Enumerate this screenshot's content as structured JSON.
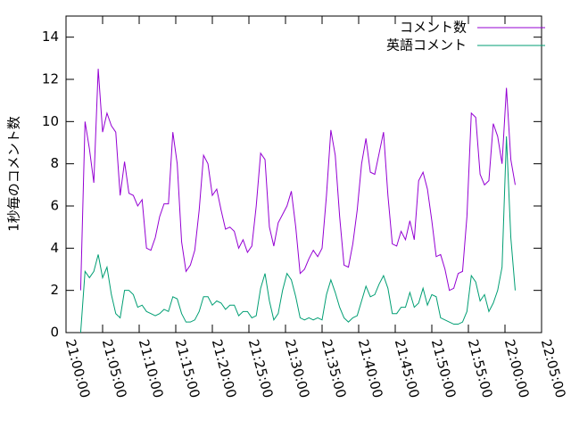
{
  "chart_data": {
    "type": "line",
    "y_label": "1秒毎のコメント数",
    "legend": "top-right",
    "x": [
      "21:02:00",
      "21:02:36",
      "21:03:12",
      "21:03:48",
      "21:04:24",
      "21:05:00",
      "21:05:36",
      "21:06:12",
      "21:06:48",
      "21:07:24",
      "21:08:00",
      "21:08:36",
      "21:09:12",
      "21:09:48",
      "21:10:24",
      "21:11:00",
      "21:11:36",
      "21:12:12",
      "21:12:48",
      "21:13:24",
      "21:14:00",
      "21:14:36",
      "21:15:12",
      "21:15:48",
      "21:16:24",
      "21:17:00",
      "21:17:36",
      "21:18:12",
      "21:18:48",
      "21:19:24",
      "21:20:00",
      "21:20:36",
      "21:21:12",
      "21:21:48",
      "21:22:24",
      "21:23:00",
      "21:23:36",
      "21:24:12",
      "21:24:48",
      "21:25:24",
      "21:26:00",
      "21:26:36",
      "21:27:12",
      "21:27:48",
      "21:28:24",
      "21:29:00",
      "21:29:36",
      "21:30:12",
      "21:30:48",
      "21:31:24",
      "21:32:00",
      "21:32:36",
      "21:33:12",
      "21:33:48",
      "21:34:24",
      "21:35:00",
      "21:35:36",
      "21:36:12",
      "21:36:48",
      "21:37:24",
      "21:38:00",
      "21:38:36",
      "21:39:12",
      "21:39:48",
      "21:40:24",
      "21:41:00",
      "21:41:36",
      "21:42:12",
      "21:42:48",
      "21:43:24",
      "21:44:00",
      "21:44:36",
      "21:45:12",
      "21:45:48",
      "21:46:24",
      "21:47:00",
      "21:47:36",
      "21:48:12",
      "21:48:48",
      "21:49:24",
      "21:50:00",
      "21:50:36",
      "21:51:12",
      "21:51:48",
      "21:52:24",
      "21:53:00",
      "21:53:36",
      "21:54:12",
      "21:54:48",
      "21:55:24",
      "21:56:00",
      "21:56:36",
      "21:57:12",
      "21:57:48",
      "21:58:24",
      "21:59:00",
      "21:59:36",
      "22:00:12",
      "22:00:48",
      "22:01:24"
    ],
    "series": [
      {
        "name": "コメント数",
        "color": "#9400d3",
        "values": [
          2.0,
          10.0,
          8.7,
          7.1,
          12.5,
          9.5,
          10.4,
          9.8,
          9.5,
          6.5,
          8.1,
          6.6,
          6.5,
          6.0,
          6.3,
          4.0,
          3.9,
          4.5,
          5.5,
          6.1,
          6.1,
          9.5,
          8.0,
          4.3,
          2.9,
          3.2,
          3.9,
          5.8,
          8.4,
          8.0,
          6.5,
          6.8,
          5.8,
          4.9,
          5.0,
          4.8,
          4.0,
          4.4,
          3.8,
          4.1,
          6.0,
          8.5,
          8.2,
          5.0,
          4.1,
          5.2,
          5.6,
          6.0,
          6.7,
          5.0,
          2.8,
          3.0,
          3.5,
          3.9,
          3.6,
          4.0,
          6.5,
          9.6,
          8.4,
          5.5,
          3.2,
          3.1,
          4.2,
          5.8,
          8.0,
          9.2,
          7.6,
          7.5,
          8.5,
          9.5,
          6.5,
          4.2,
          4.1,
          4.8,
          4.4,
          5.3,
          4.4,
          7.2,
          7.6,
          6.8,
          5.3,
          3.6,
          3.7,
          3.0,
          2.0,
          2.1,
          2.8,
          2.9,
          5.5,
          10.4,
          10.2,
          7.5,
          7.0,
          7.2,
          9.9,
          9.3,
          8.0,
          11.6,
          8.2,
          7.0
        ]
      },
      {
        "name": "英語コメント",
        "color": "#009e73",
        "values": [
          0.0,
          2.9,
          2.6,
          2.9,
          3.7,
          2.6,
          3.1,
          1.8,
          0.9,
          0.7,
          2.0,
          2.0,
          1.8,
          1.2,
          1.3,
          1.0,
          0.9,
          0.8,
          0.9,
          1.1,
          1.0,
          1.7,
          1.6,
          0.9,
          0.5,
          0.5,
          0.6,
          1.0,
          1.7,
          1.7,
          1.3,
          1.5,
          1.4,
          1.1,
          1.3,
          1.3,
          0.8,
          1.0,
          1.0,
          0.7,
          0.8,
          2.1,
          2.8,
          1.5,
          0.6,
          0.9,
          2.0,
          2.8,
          2.5,
          1.7,
          0.7,
          0.6,
          0.7,
          0.6,
          0.7,
          0.6,
          1.8,
          2.5,
          1.9,
          1.2,
          0.7,
          0.5,
          0.7,
          0.8,
          1.5,
          2.2,
          1.7,
          1.8,
          2.3,
          2.7,
          2.1,
          0.9,
          0.9,
          1.2,
          1.2,
          1.9,
          1.2,
          1.4,
          2.1,
          1.3,
          1.8,
          1.7,
          0.7,
          0.6,
          0.5,
          0.4,
          0.4,
          0.5,
          1.0,
          2.7,
          2.4,
          1.5,
          1.8,
          1.0,
          1.4,
          2.0,
          3.1,
          9.3,
          4.5,
          2.0
        ]
      }
    ],
    "xlim": [
      "21:00:00",
      "22:05:00"
    ],
    "xticks": [
      "21:00:00",
      "21:05:00",
      "21:10:00",
      "21:15:00",
      "21:20:00",
      "21:25:00",
      "21:30:00",
      "21:35:00",
      "21:40:00",
      "21:45:00",
      "21:50:00",
      "21:55:00",
      "22:00:00",
      "22:05:00"
    ],
    "ylim": [
      0,
      15
    ],
    "yticks": [
      0,
      2,
      4,
      6,
      8,
      10,
      12,
      14
    ]
  }
}
